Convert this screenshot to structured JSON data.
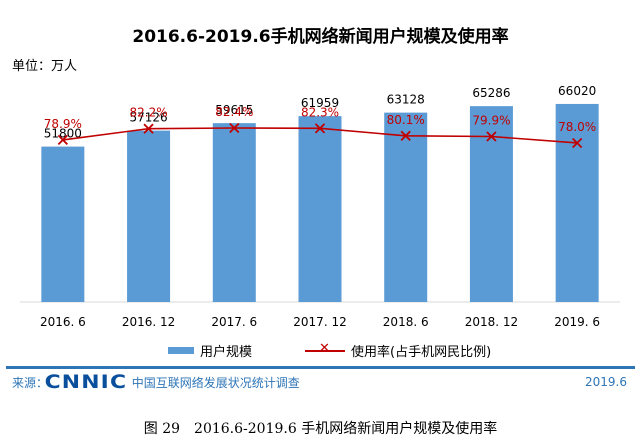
{
  "title": "2016.6-2019.6手机网络新闻用户规模及使用率",
  "unit_label": "单位：万人",
  "legend": {
    "bar_label": "用户规模",
    "line_label": "使用率(占手机网民比例)"
  },
  "footer": {
    "source_label": "来源：",
    "logo_text": "CNNIC",
    "source_org": "中国互联网络发展状况统计调查",
    "date": "2019.6"
  },
  "caption": {
    "number": "图 29",
    "text": "2016.6-2019.6 手机网络新闻用户规模及使用率"
  },
  "chart_data": {
    "type": "bar",
    "categories": [
      "2016. 6",
      "2016. 12",
      "2017. 6",
      "2017. 12",
      "2018. 6",
      "2018. 12",
      "2019. 6"
    ],
    "series": [
      {
        "name": "用户规模",
        "type": "bar",
        "values": [
          51800,
          57126,
          59615,
          61959,
          63128,
          65286,
          66020
        ],
        "labels": [
          "51800",
          "57126",
          "59615",
          "61959",
          "63128",
          "65286",
          "66020"
        ]
      },
      {
        "name": "使用率(占手机网民比例)",
        "type": "line",
        "values": [
          78.9,
          82.2,
          82.4,
          82.3,
          80.1,
          79.9,
          78.0
        ],
        "labels": [
          "78.9%",
          "82.2%",
          "82.4%",
          "82.3%",
          "80.1%",
          "79.9%",
          "78.0%"
        ]
      }
    ],
    "colors": {
      "bar": "#5b9bd5",
      "line": "#c00000",
      "line_label": "#c00000"
    },
    "legend_position": "bottom",
    "grid": false
  }
}
